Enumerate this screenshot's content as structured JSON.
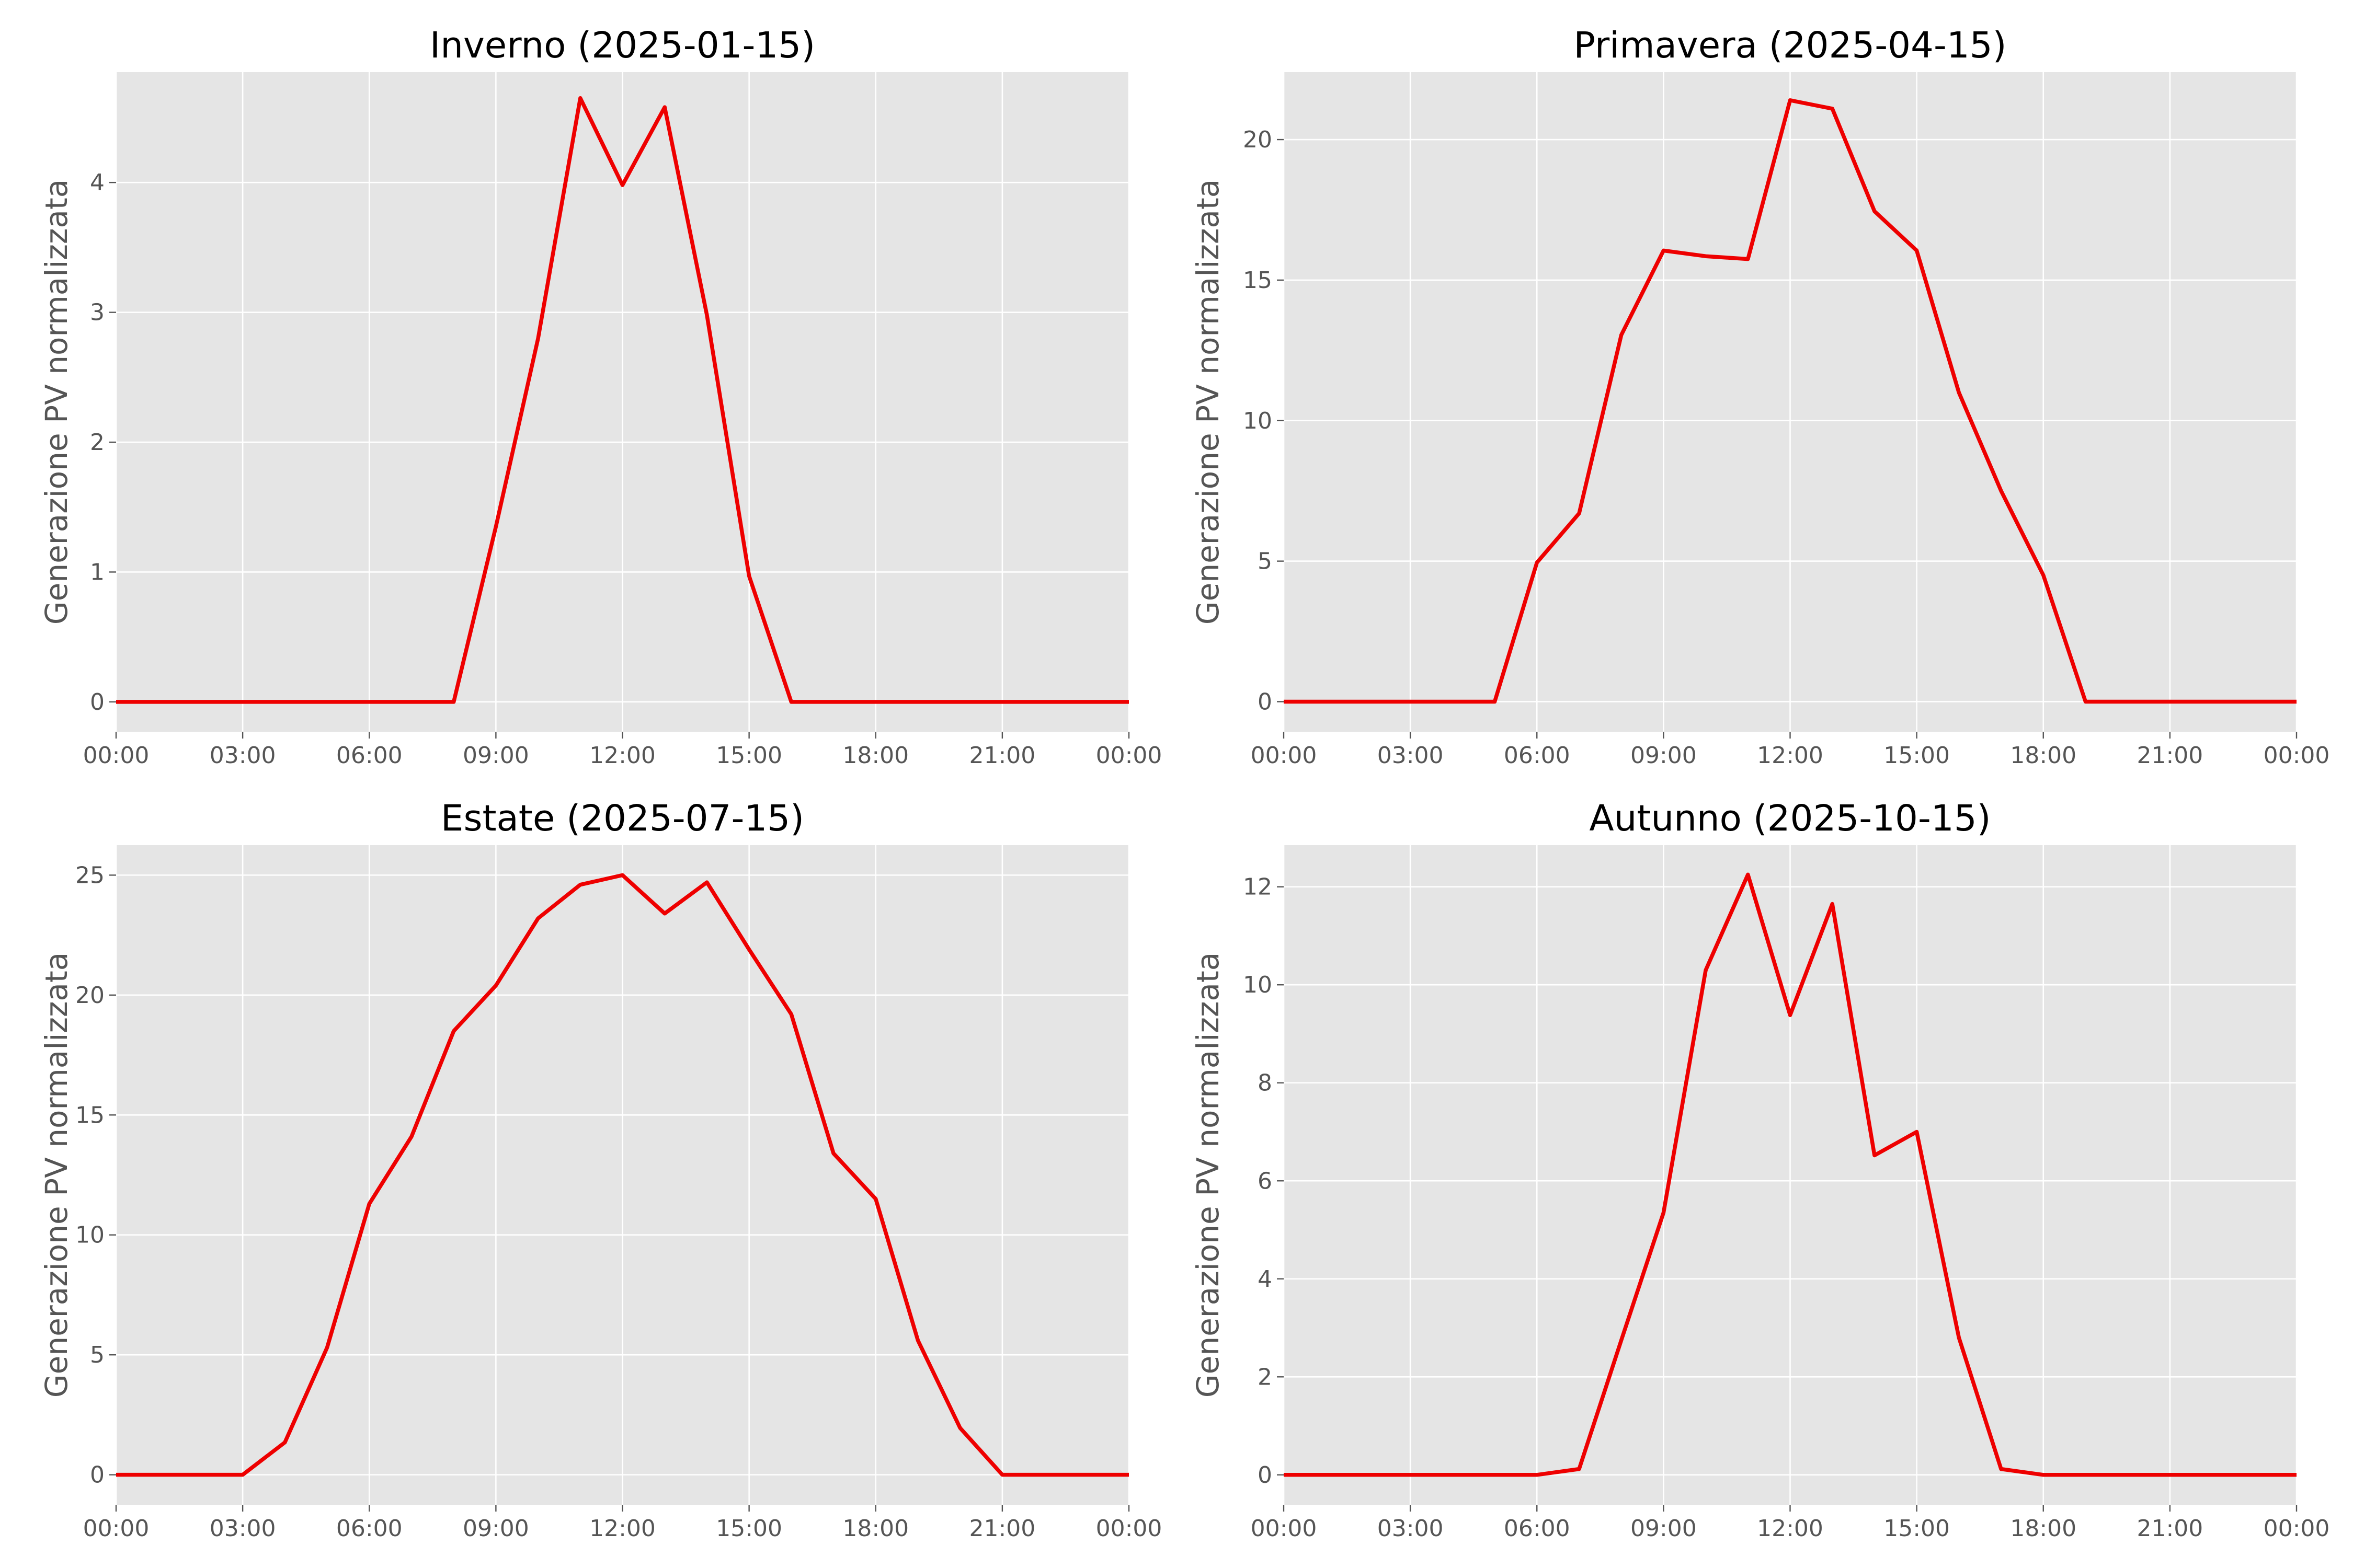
{
  "chart_data": [
    {
      "type": "line",
      "title": "Inverno (2025-01-15)",
      "xlabel": "",
      "ylabel": "Generazione PV normalizzata",
      "x": [
        "00:00",
        "01:00",
        "02:00",
        "03:00",
        "04:00",
        "05:00",
        "06:00",
        "07:00",
        "08:00",
        "09:00",
        "10:00",
        "11:00",
        "12:00",
        "13:00",
        "14:00",
        "15:00",
        "16:00",
        "17:00",
        "18:00",
        "19:00",
        "20:00",
        "21:00",
        "22:00",
        "23:00",
        "00:00"
      ],
      "xticks": [
        "00:00",
        "03:00",
        "06:00",
        "09:00",
        "12:00",
        "15:00",
        "18:00",
        "21:00",
        "00:00"
      ],
      "yticks": [
        0,
        1,
        2,
        3,
        4
      ],
      "ylim": [
        -0.23,
        4.85
      ],
      "grid": true,
      "series": [
        {
          "color": "#ee0000",
          "values": [
            0,
            0,
            0,
            0,
            0,
            0,
            0,
            0,
            0,
            1.35,
            2.8,
            4.65,
            3.98,
            4.58,
            2.98,
            0.97,
            0,
            0,
            0,
            0,
            0,
            0,
            0,
            0,
            0
          ]
        }
      ]
    },
    {
      "type": "line",
      "title": "Primavera (2025-04-15)",
      "xlabel": "",
      "ylabel": "Generazione PV normalizzata",
      "x": [
        "00:00",
        "01:00",
        "02:00",
        "03:00",
        "04:00",
        "05:00",
        "06:00",
        "07:00",
        "08:00",
        "09:00",
        "10:00",
        "11:00",
        "12:00",
        "13:00",
        "14:00",
        "15:00",
        "16:00",
        "17:00",
        "18:00",
        "19:00",
        "20:00",
        "21:00",
        "22:00",
        "23:00",
        "00:00"
      ],
      "xticks": [
        "00:00",
        "03:00",
        "06:00",
        "09:00",
        "12:00",
        "15:00",
        "18:00",
        "21:00",
        "00:00"
      ],
      "yticks": [
        0,
        5,
        10,
        15,
        20
      ],
      "ylim": [
        -1.07,
        22.4
      ],
      "grid": true,
      "series": [
        {
          "color": "#ee0000",
          "values": [
            0,
            0,
            0,
            0,
            0,
            0,
            4.95,
            6.7,
            13.05,
            16.05,
            15.85,
            15.75,
            21.4,
            21.1,
            17.45,
            16.05,
            11,
            7.5,
            4.5,
            0,
            0,
            0,
            0,
            0,
            0
          ]
        }
      ]
    },
    {
      "type": "line",
      "title": "Estate (2025-07-15)",
      "xlabel": "",
      "ylabel": "Generazione PV normalizzata",
      "x": [
        "00:00",
        "01:00",
        "02:00",
        "03:00",
        "04:00",
        "05:00",
        "06:00",
        "07:00",
        "08:00",
        "09:00",
        "10:00",
        "11:00",
        "12:00",
        "13:00",
        "14:00",
        "15:00",
        "16:00",
        "17:00",
        "18:00",
        "19:00",
        "20:00",
        "21:00",
        "22:00",
        "23:00",
        "00:00"
      ],
      "xticks": [
        "00:00",
        "03:00",
        "06:00",
        "09:00",
        "12:00",
        "15:00",
        "18:00",
        "21:00",
        "00:00"
      ],
      "yticks": [
        0,
        5,
        10,
        15,
        20,
        25
      ],
      "ylim": [
        -1.25,
        26.25
      ],
      "grid": true,
      "series": [
        {
          "color": "#ee0000",
          "values": [
            0,
            0,
            0,
            0,
            1.35,
            5.3,
            11.3,
            14.1,
            18.5,
            20.4,
            23.2,
            24.6,
            25,
            23.4,
            24.7,
            21.9,
            19.2,
            13.4,
            11.5,
            5.6,
            1.95,
            0,
            0,
            0,
            0
          ]
        }
      ]
    },
    {
      "type": "line",
      "title": "Autunno (2025-10-15)",
      "xlabel": "",
      "ylabel": "Generazione PV normalizzata",
      "x": [
        "00:00",
        "01:00",
        "02:00",
        "03:00",
        "04:00",
        "05:00",
        "06:00",
        "07:00",
        "08:00",
        "09:00",
        "10:00",
        "11:00",
        "12:00",
        "13:00",
        "14:00",
        "15:00",
        "16:00",
        "17:00",
        "18:00",
        "19:00",
        "20:00",
        "21:00",
        "22:00",
        "23:00",
        "00:00"
      ],
      "xticks": [
        "00:00",
        "03:00",
        "06:00",
        "09:00",
        "12:00",
        "15:00",
        "18:00",
        "21:00",
        "00:00"
      ],
      "yticks": [
        0,
        2,
        4,
        6,
        8,
        10,
        12
      ],
      "ylim": [
        -0.61,
        12.85
      ],
      "grid": true,
      "series": [
        {
          "color": "#ee0000",
          "values": [
            0,
            0,
            0,
            0,
            0,
            0,
            0,
            0.12,
            2.75,
            5.35,
            10.3,
            12.25,
            9.38,
            11.65,
            6.52,
            7.0,
            2.8,
            0.12,
            0,
            0,
            0,
            0,
            0,
            0,
            0
          ]
        }
      ]
    }
  ]
}
